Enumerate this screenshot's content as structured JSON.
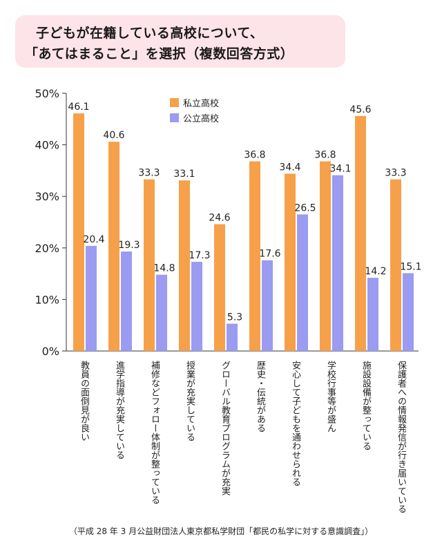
{
  "title": {
    "line1": "子どもが在籍している高校について、",
    "line2": "「あてはまること」を選択（複数回答方式）"
  },
  "source": "（平成 28 年 3 月公益財団法人東京都私学財団「都民の私学に対する意識調査」）",
  "chart_data": {
    "type": "bar",
    "categories": [
      "教員の面倒見が良い",
      "進学指導が充実している",
      "補修などフォロー体制が整っている",
      "授業が充実している",
      "グローバル教育プログラムが充実",
      "歴史・伝統がある",
      "安心して子どもを通わせられる",
      "学校行事等が盛ん",
      "施設設備が整っている",
      "保護者への情報発信が行き届いている"
    ],
    "series": [
      {
        "name": "私立高校",
        "values": [
          46.1,
          40.6,
          33.3,
          33.1,
          24.6,
          36.8,
          34.4,
          36.8,
          45.6,
          33.3
        ],
        "color": "#f7a04a"
      },
      {
        "name": "公立高校",
        "values": [
          20.4,
          19.3,
          14.8,
          17.3,
          5.3,
          17.6,
          26.5,
          34.1,
          14.2,
          15.1
        ],
        "color": "#9b9bf2"
      }
    ],
    "value_labels": [
      [
        "46.1",
        "40.6",
        "33.3",
        "33.1",
        "24.6",
        "36.8",
        "34.4",
        "36.8",
        "45.6",
        "33.3"
      ],
      [
        "20.4",
        "19.3",
        "14.8",
        "17.3",
        "5.3",
        "17.6",
        "26.5",
        "34.1",
        "14.2",
        "15.1"
      ]
    ],
    "yticks": [
      "0%",
      "10%",
      "20%",
      "30%",
      "40%",
      "50%"
    ],
    "ylim": [
      0,
      50
    ],
    "grid": false,
    "legend": "top-center"
  }
}
